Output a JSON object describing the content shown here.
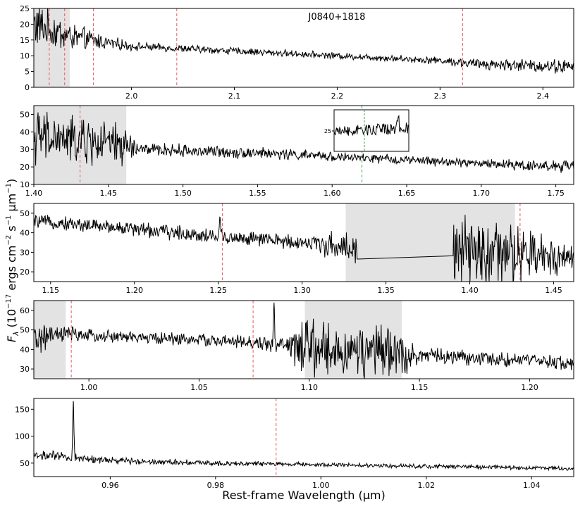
{
  "colors": {
    "trace": "#000000",
    "shade": "#e3e3e3",
    "red_line": "#e8585c",
    "green_line": "#3aa64c"
  },
  "xlabel": "Rest-frame Wavelength (μm)",
  "ylabel_parts": {
    "f": "F",
    "sub": "λ",
    "text1": " (10",
    "exp1": "−17",
    "text2": " ergs cm",
    "exp2": "−2",
    "text3": " s",
    "exp3": "−1",
    "text4": " μm",
    "exp4": "−1",
    "text5": ")"
  },
  "chart_data": [
    {
      "type": "line",
      "title": "J0840+1818",
      "xlim": [
        1.905,
        2.43
      ],
      "ylim": [
        0,
        25
      ],
      "xticks": [
        2.0,
        2.1,
        2.2,
        2.3,
        2.4
      ],
      "xtick_labels": [
        "2.0",
        "2.1",
        "2.2",
        "2.3",
        "2.4"
      ],
      "yticks": [
        0,
        5,
        10,
        15,
        20,
        25
      ],
      "ytick_labels": [
        "0",
        "5",
        "10",
        "15",
        "20",
        "25"
      ],
      "shaded_regions": [
        [
          1.905,
          1.912
        ],
        [
          1.912,
          1.94
        ]
      ],
      "red_lines": [
        1.92,
        1.935,
        1.963,
        2.044,
        2.322
      ],
      "green_lines": [],
      "profile": [
        [
          1.905,
          20,
          6
        ],
        [
          1.94,
          16,
          3.5
        ],
        [
          1.97,
          14.5,
          2
        ],
        [
          2.0,
          13,
          1
        ],
        [
          2.1,
          11.5,
          0.9
        ],
        [
          2.2,
          10,
          0.8
        ],
        [
          2.3,
          8.5,
          0.9
        ],
        [
          2.33,
          7.5,
          1.3
        ],
        [
          2.43,
          6.5,
          1.8
        ]
      ],
      "peaks": [],
      "gaps": []
    },
    {
      "type": "line",
      "title": "",
      "xlim": [
        1.4,
        1.762
      ],
      "ylim": [
        10,
        55
      ],
      "xticks": [
        1.4,
        1.45,
        1.5,
        1.55,
        1.6,
        1.65,
        1.7,
        1.75
      ],
      "xtick_labels": [
        "1.40",
        "1.45",
        "1.50",
        "1.55",
        "1.60",
        "1.65",
        "1.70",
        "1.75"
      ],
      "yticks": [
        10,
        20,
        30,
        40,
        50
      ],
      "ytick_labels": [
        "10",
        "20",
        "30",
        "40",
        "50"
      ],
      "shaded_regions": [
        [
          1.4,
          1.462
        ]
      ],
      "red_lines": [
        1.431
      ],
      "green_lines": [
        1.62
      ],
      "profile": [
        [
          1.4,
          37,
          12
        ],
        [
          1.462,
          32,
          9
        ],
        [
          1.47,
          30,
          3
        ],
        [
          1.55,
          28,
          2.5
        ],
        [
          1.62,
          25,
          2
        ],
        [
          1.7,
          22,
          2
        ],
        [
          1.762,
          20,
          3
        ]
      ],
      "peaks": [],
      "gaps": [],
      "inset": {
        "ytick_label": "25"
      }
    },
    {
      "type": "line",
      "title": "",
      "xlim": [
        1.14,
        1.462
      ],
      "ylim": [
        15,
        55
      ],
      "xticks": [
        1.15,
        1.2,
        1.25,
        1.3,
        1.35,
        1.4,
        1.45
      ],
      "xtick_labels": [
        "1.15",
        "1.20",
        "1.25",
        "1.30",
        "1.35",
        "1.40",
        "1.45"
      ],
      "yticks": [
        20,
        30,
        40,
        50
      ],
      "ytick_labels": [
        "20",
        "30",
        "40",
        "50"
      ],
      "shaded_regions": [
        [
          1.326,
          1.427
        ]
      ],
      "red_lines": [
        1.2525,
        1.43
      ],
      "green_lines": [],
      "profile": [
        [
          1.14,
          46,
          2.5
        ],
        [
          1.2,
          42,
          3
        ],
        [
          1.25,
          38,
          3
        ],
        [
          1.3,
          35,
          3
        ],
        [
          1.326,
          33,
          6
        ],
        [
          1.333,
          31,
          6
        ],
        [
          1.39,
          30,
          14
        ],
        [
          1.43,
          28,
          12
        ],
        [
          1.462,
          28,
          5
        ]
      ],
      "peaks": [
        [
          1.251,
          48
        ]
      ],
      "gaps": [
        [
          1.333,
          1.39
        ]
      ]
    },
    {
      "type": "line",
      "title": "",
      "xlim": [
        0.975,
        1.22
      ],
      "ylim": [
        25,
        65
      ],
      "xticks": [
        1.0,
        1.05,
        1.1,
        1.15,
        1.2
      ],
      "xtick_labels": [
        "1.00",
        "1.05",
        "1.10",
        "1.15",
        "1.20"
      ],
      "yticks": [
        30,
        40,
        50,
        60
      ],
      "ytick_labels": [
        "30",
        "40",
        "50",
        "60"
      ],
      "shaded_regions": [
        [
          0.975,
          0.9895
        ],
        [
          1.098,
          1.142
        ]
      ],
      "red_lines": [
        0.992,
        1.0745
      ],
      "green_lines": [],
      "profile": [
        [
          0.975,
          45,
          6
        ],
        [
          0.99,
          48,
          3
        ],
        [
          1.0,
          47,
          2.5
        ],
        [
          1.05,
          45,
          2.5
        ],
        [
          1.09,
          42,
          3
        ],
        [
          1.098,
          40,
          12
        ],
        [
          1.142,
          38,
          10
        ],
        [
          1.15,
          37,
          3
        ],
        [
          1.22,
          33,
          3
        ]
      ],
      "peaks": [
        [
          1.084,
          64
        ]
      ],
      "gaps": []
    },
    {
      "type": "line",
      "title": "",
      "xlim": [
        0.9455,
        1.048
      ],
      "ylim": [
        25,
        170
      ],
      "xticks": [
        0.96,
        0.98,
        1.0,
        1.02,
        1.04
      ],
      "xtick_labels": [
        "0.96",
        "0.98",
        "1.00",
        "1.02",
        "1.04"
      ],
      "yticks": [
        50,
        100,
        150
      ],
      "ytick_labels": [
        "50",
        "100",
        "150"
      ],
      "shaded_regions": [],
      "red_lines": [
        0.9915
      ],
      "green_lines": [],
      "profile": [
        [
          0.9455,
          65,
          8
        ],
        [
          0.96,
          55,
          5
        ],
        [
          0.98,
          50,
          3.5
        ],
        [
          1.0,
          47,
          3
        ],
        [
          1.048,
          40,
          3
        ]
      ],
      "peaks": [
        [
          0.953,
          165
        ]
      ],
      "gaps": []
    }
  ]
}
